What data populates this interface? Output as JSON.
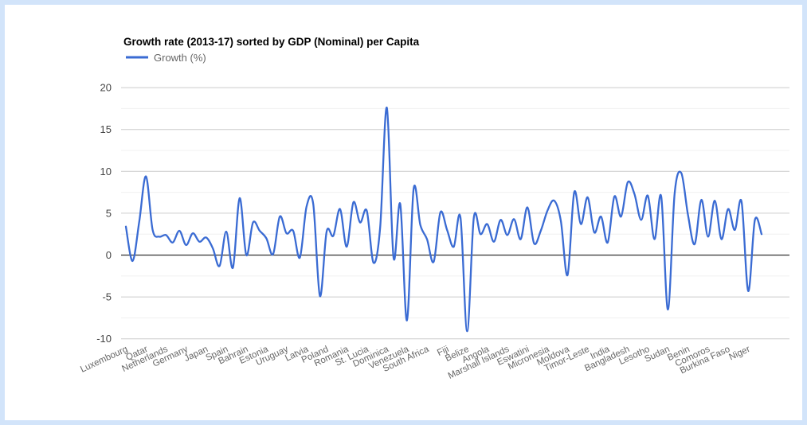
{
  "frame": {
    "border_color": "#d2e4fa",
    "background_color": "#ffffff"
  },
  "chart": {
    "title": "Growth rate (2013-17) sorted by GDP (Nominal) per Capita",
    "legend": {
      "label": "Growth (%)",
      "swatch_color": "#3a6bd3",
      "position": "top-left"
    }
  },
  "chart_data": {
    "type": "line",
    "title": "Growth rate (2013-17) sorted by GDP (Nominal) per Capita",
    "xlabel": "",
    "ylabel": "",
    "ylim": [
      -10,
      20
    ],
    "y_ticks": [
      20,
      15,
      10,
      5,
      0,
      -5,
      -10
    ],
    "grid": {
      "major_step": 5,
      "minor_step": 2.5,
      "zero_line": true
    },
    "legend_position": "top-left",
    "x_tick_labels": [
      "Luxembourg",
      "Qatar",
      "Netherlands",
      "Germany",
      "Japan",
      "Spain",
      "Bahrain",
      "Estonia",
      "Uruguay",
      "Latvia",
      "Poland",
      "Romania",
      "St. Lucia",
      "Dominica",
      "Venezuela",
      "South Africa",
      "Fiji",
      "Belize",
      "Angola",
      "Marshall Islands",
      "Eswatini",
      "Micronesia",
      "Moldova",
      "Timor-Leste",
      "India",
      "Bangladesh",
      "Lesotho",
      "Sudan",
      "Benin",
      "Comoros",
      "Burkina Faso",
      "Niger"
    ],
    "label_every_n_points": 3,
    "series": [
      {
        "name": "Growth (%)",
        "color": "#3a6bd3",
        "values": [
          3.4,
          -0.7,
          4.0,
          9.4,
          3.0,
          2.2,
          2.4,
          1.5,
          2.9,
          1.2,
          2.6,
          1.6,
          2.1,
          0.8,
          -1.3,
          2.8,
          -1.5,
          6.8,
          0.0,
          3.9,
          2.9,
          2.0,
          0.1,
          4.6,
          2.6,
          2.9,
          -0.3,
          5.8,
          6.1,
          -4.9,
          2.8,
          2.3,
          5.5,
          1.0,
          6.3,
          3.9,
          5.3,
          -0.9,
          3.3,
          17.6,
          -0.3,
          6.1,
          -7.8,
          7.9,
          3.6,
          1.9,
          -0.8,
          5.1,
          3.0,
          1.0,
          4.5,
          -9.1,
          4.5,
          2.5,
          3.7,
          1.6,
          4.2,
          2.4,
          4.3,
          1.9,
          5.7,
          1.4,
          2.9,
          5.3,
          6.5,
          4.1,
          -2.4,
          7.5,
          3.7,
          6.9,
          2.7,
          4.6,
          1.5,
          7.0,
          4.6,
          8.7,
          7.3,
          4.2,
          7.1,
          1.9,
          7.0,
          -6.5,
          7.3,
          9.8,
          4.8,
          1.3,
          6.6,
          2.2,
          6.5,
          1.9,
          5.5,
          3.0,
          6.4,
          -4.3,
          4.2,
          2.5
        ]
      }
    ],
    "colors": {
      "line": "#3a6bd3",
      "grid_major": "#cccccc",
      "grid_minor": "#f0f0f0",
      "zero_axis": "#333333",
      "y_label": "#444444",
      "x_label": "#666666"
    }
  }
}
